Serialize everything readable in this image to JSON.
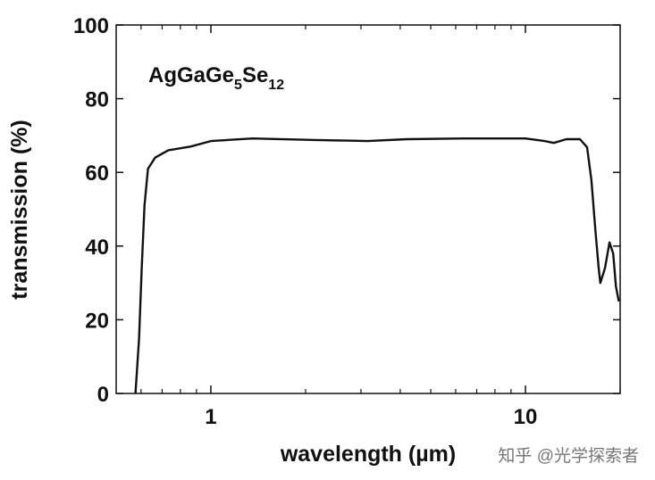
{
  "chart_data": {
    "type": "line",
    "annotation": [
      "AgGaGe",
      "5",
      "Se",
      "12"
    ],
    "xlabel": "wavelength (µm)",
    "ylabel": "transmission (%)",
    "watermark": "知乎 @光学探索者",
    "xscale": "log",
    "xlim": [
      0.5,
      20
    ],
    "xticks": [
      1,
      10
    ],
    "xticks_minor": [
      0.6,
      0.7,
      0.8,
      0.9,
      2,
      3,
      4,
      5,
      6,
      7,
      8,
      9,
      20
    ],
    "ylim": [
      0,
      100
    ],
    "yticks": [
      0,
      20,
      40,
      60,
      80,
      100
    ],
    "grid": false,
    "series": [
      {
        "name": null,
        "color": "#111111",
        "x": [
          0.576,
          0.591,
          0.603,
          0.615,
          0.631,
          0.665,
          0.732,
          0.861,
          1,
          1.356,
          2.14,
          3.15,
          4.21,
          6.43,
          10,
          11.5,
          12.3,
          13.5,
          14.9,
          15.7,
          16.2,
          16.7,
          17.1,
          17.3,
          17.9,
          18.5,
          19.0,
          19.4,
          19.8
        ],
        "values": [
          0,
          14.8,
          34,
          51,
          61,
          64,
          66,
          67,
          68.5,
          69.2,
          68.8,
          68.5,
          69,
          69.2,
          69.2,
          68.5,
          68,
          69,
          69,
          66.8,
          58,
          44,
          34,
          30,
          34,
          41,
          38,
          29,
          25
        ]
      }
    ]
  }
}
